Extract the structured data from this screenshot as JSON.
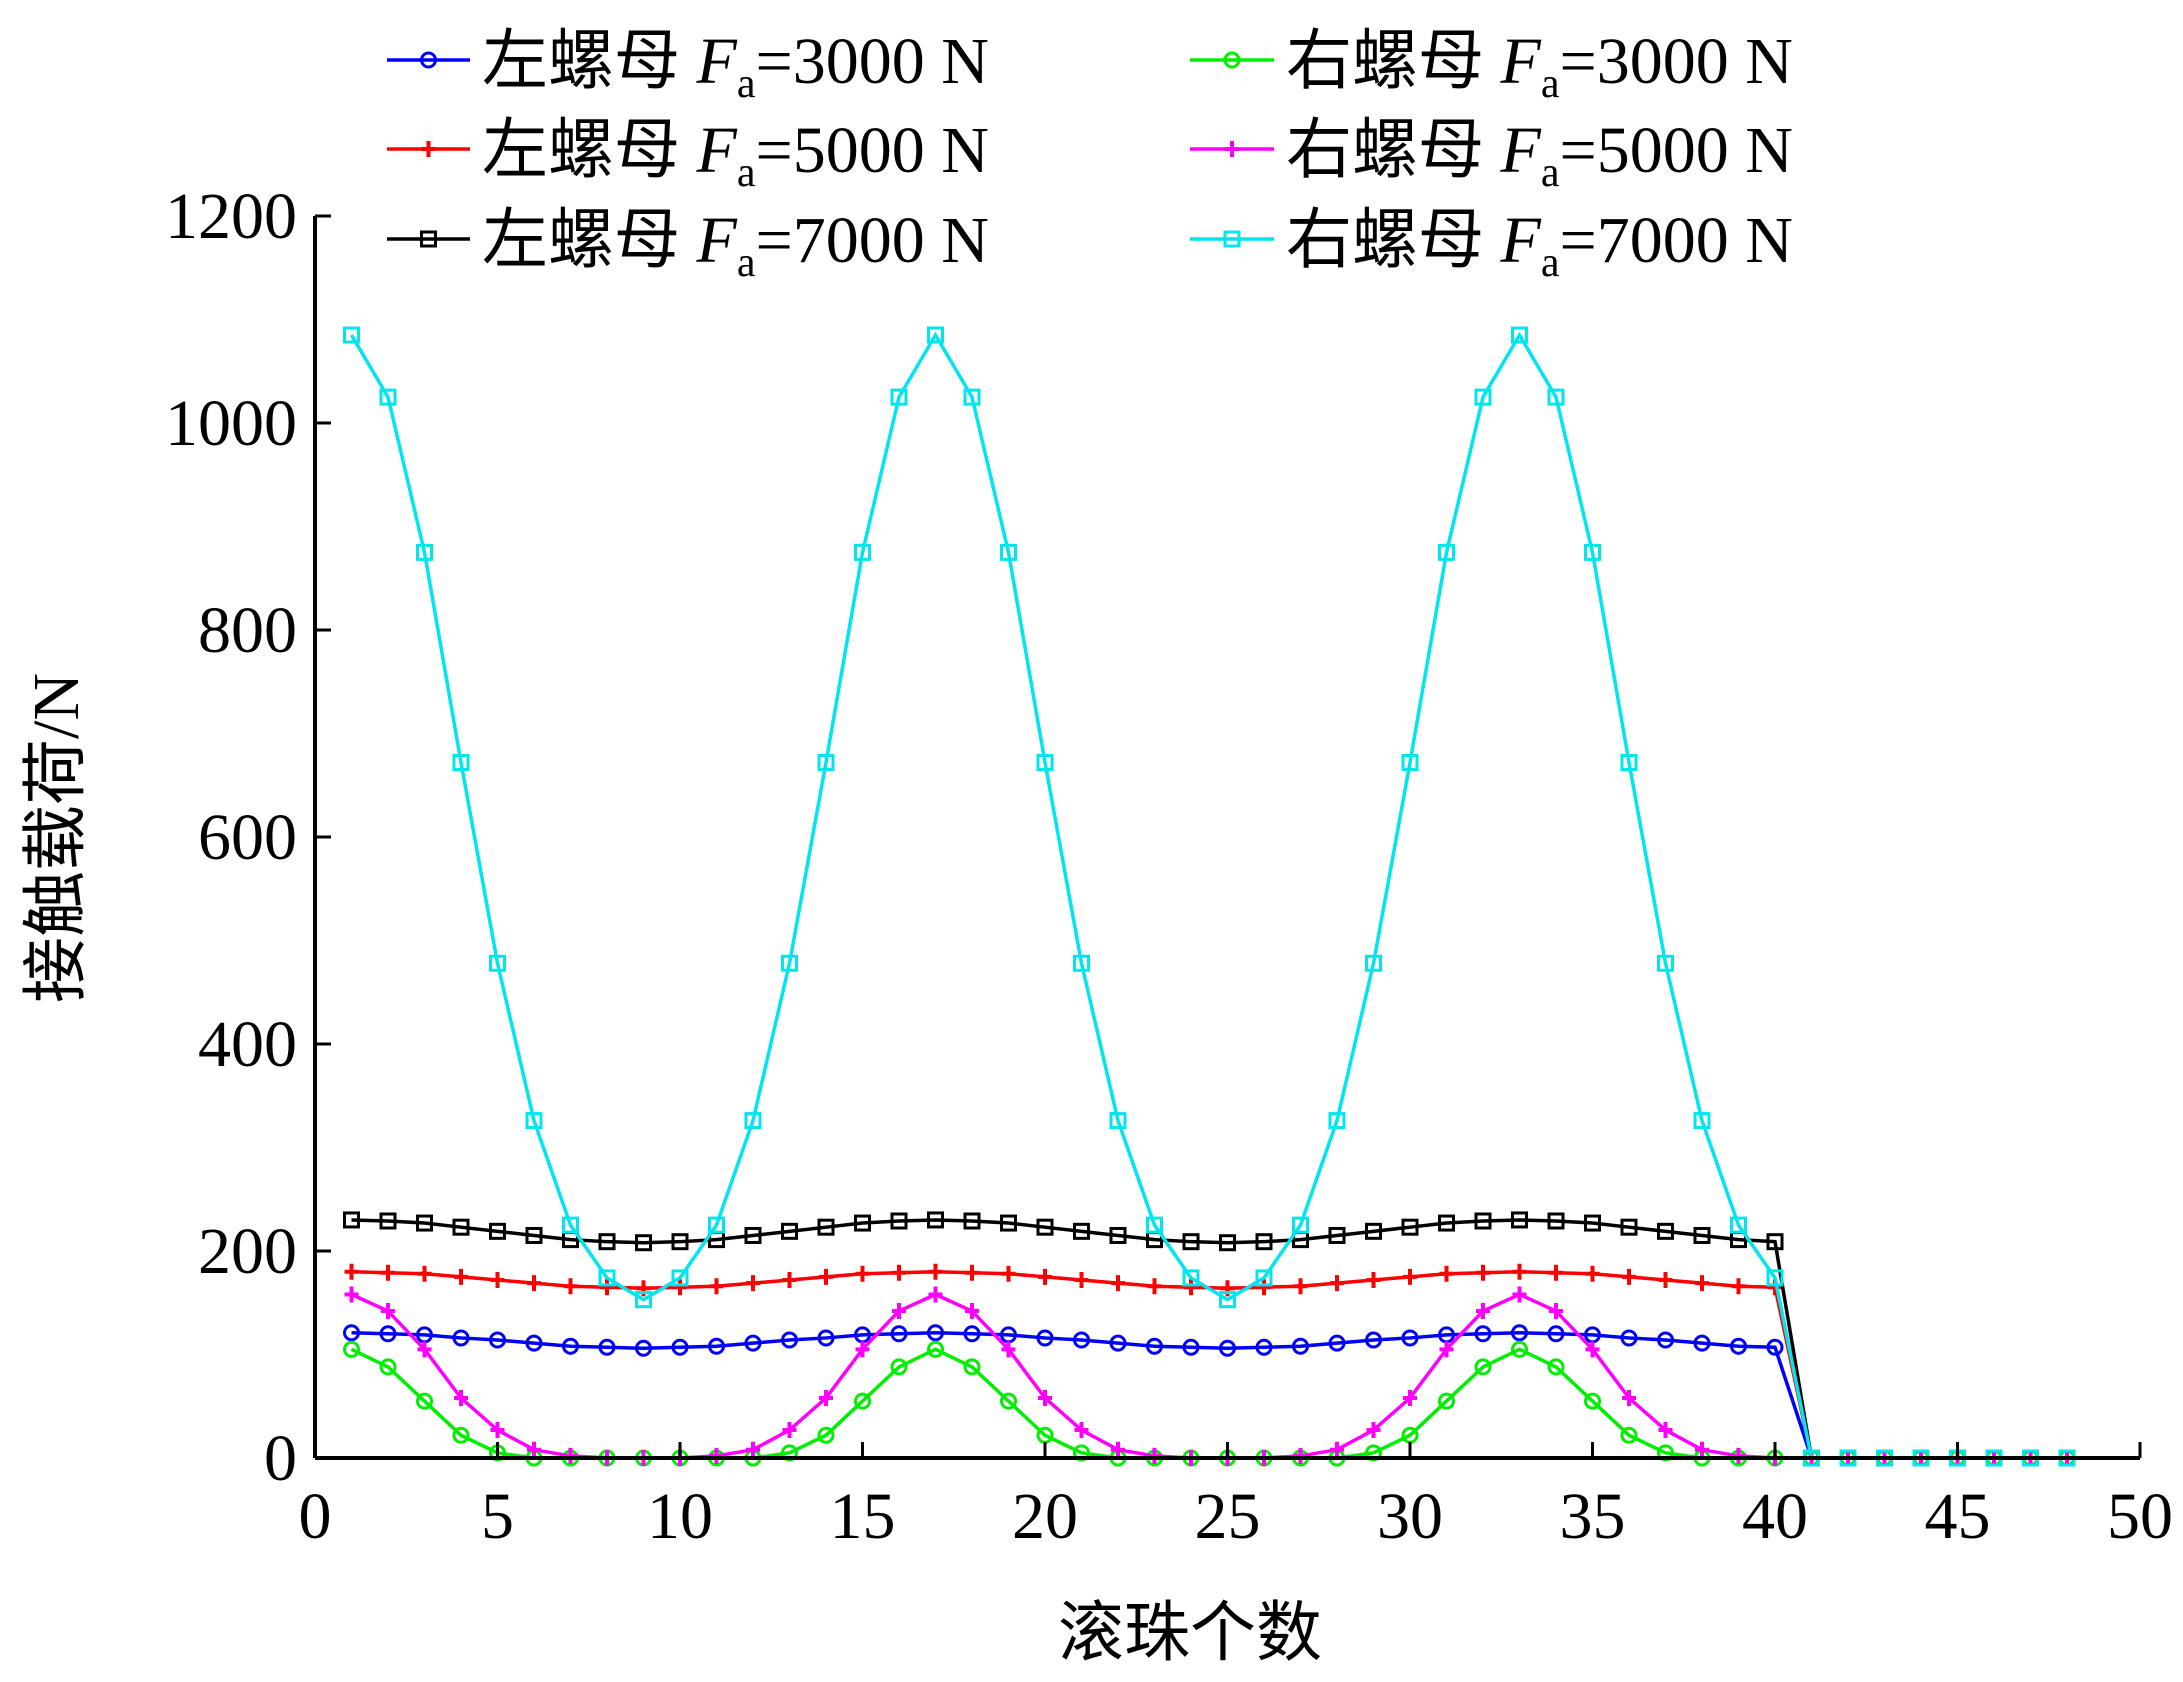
{
  "chart_data": {
    "type": "line",
    "title": "",
    "xlabel": "滚珠个数",
    "ylabel": "接触载荷/N",
    "xlim": [
      0,
      50
    ],
    "ylim": [
      0,
      1200
    ],
    "xticks": [
      0,
      5,
      10,
      15,
      20,
      25,
      30,
      35,
      40,
      45,
      50
    ],
    "yticks": [
      0,
      200,
      400,
      600,
      800,
      1000,
      1200
    ],
    "grid": false,
    "legend_placement": "top",
    "x": [
      1,
      2,
      3,
      4,
      5,
      6,
      7,
      8,
      9,
      10,
      11,
      12,
      13,
      14,
      15,
      16,
      17,
      18,
      19,
      20,
      21,
      22,
      23,
      24,
      25,
      26,
      27,
      28,
      29,
      30,
      31,
      32,
      33,
      34,
      35,
      36,
      37,
      38,
      39,
      40,
      41,
      42,
      43,
      44,
      45,
      46,
      47,
      48
    ],
    "series": [
      {
        "name": "左螺母 Fa=3000 N",
        "label_parts": {
          "prefix": "左螺母 ",
          "var": "F",
          "sub": "a",
          "suffix": "=3000 N"
        },
        "color": "#0000ff",
        "marker": "circle",
        "values": [
          121,
          120,
          119,
          116,
          114,
          111,
          108,
          107,
          106,
          107,
          108,
          111,
          114,
          116,
          119,
          120,
          121,
          120,
          119,
          116,
          114,
          111,
          108,
          107,
          106,
          107,
          108,
          111,
          114,
          116,
          119,
          120,
          121,
          120,
          119,
          116,
          114,
          111,
          108,
          107,
          0,
          0,
          0,
          0,
          0,
          0,
          0,
          0
        ]
      },
      {
        "name": "左螺母 Fa=5000 N",
        "label_parts": {
          "prefix": "左螺母 ",
          "var": "F",
          "sub": "a",
          "suffix": "=5000 N"
        },
        "color": "#ff0000",
        "marker": "plus",
        "values": [
          180,
          179,
          178,
          175,
          172,
          169,
          166,
          165,
          164,
          165,
          166,
          169,
          172,
          175,
          178,
          179,
          180,
          179,
          178,
          175,
          172,
          169,
          166,
          165,
          164,
          165,
          166,
          169,
          172,
          175,
          178,
          179,
          180,
          179,
          178,
          175,
          172,
          169,
          166,
          165,
          0,
          0,
          0,
          0,
          0,
          0,
          0,
          0
        ]
      },
      {
        "name": "左螺母 Fa=7000 N",
        "label_parts": {
          "prefix": "左螺母 ",
          "var": "F",
          "sub": "a",
          "suffix": "=7000 N"
        },
        "color": "#000000",
        "marker": "square",
        "values": [
          230,
          229,
          227,
          223,
          219,
          215,
          211,
          209,
          208,
          209,
          211,
          215,
          219,
          223,
          227,
          229,
          230,
          229,
          227,
          223,
          219,
          215,
          211,
          209,
          208,
          209,
          211,
          215,
          219,
          223,
          227,
          229,
          230,
          229,
          227,
          223,
          219,
          215,
          211,
          209,
          0,
          0,
          0,
          0,
          0,
          0,
          0,
          0
        ]
      },
      {
        "name": "右螺母 Fa=3000 N",
        "label_parts": {
          "prefix": "右螺母 ",
          "var": "F",
          "sub": "a",
          "suffix": "=3000 N"
        },
        "color": "#00ee00",
        "marker": "circle",
        "values": [
          105,
          88,
          55,
          22,
          5,
          0,
          0,
          0,
          0,
          0,
          0,
          0,
          5,
          22,
          55,
          88,
          105,
          88,
          55,
          22,
          5,
          0,
          0,
          0,
          0,
          0,
          0,
          0,
          5,
          22,
          55,
          88,
          105,
          88,
          55,
          22,
          5,
          0,
          0,
          0,
          0,
          0,
          0,
          0,
          0,
          0,
          0,
          0
        ]
      },
      {
        "name": "右螺母 Fa=5000 N",
        "label_parts": {
          "prefix": "右螺母 ",
          "var": "F",
          "sub": "a",
          "suffix": "=5000 N"
        },
        "color": "#ff00ff",
        "marker": "plus",
        "values": [
          158,
          142,
          105,
          58,
          27,
          8,
          2,
          0,
          0,
          0,
          2,
          8,
          27,
          58,
          105,
          142,
          158,
          142,
          105,
          58,
          27,
          8,
          2,
          0,
          0,
          0,
          2,
          8,
          27,
          58,
          105,
          142,
          158,
          142,
          105,
          58,
          27,
          8,
          2,
          0,
          0,
          0,
          0,
          0,
          0,
          0,
          0,
          0
        ]
      },
      {
        "name": "右螺母 Fa=7000 N",
        "label_parts": {
          "prefix": "右螺母 ",
          "var": "F",
          "sub": "a",
          "suffix": "=7000 N"
        },
        "color": "#00e5ee",
        "marker": "square",
        "values": [
          1085,
          1025,
          875,
          672,
          478,
          326,
          225,
          174,
          153,
          174,
          225,
          326,
          478,
          672,
          875,
          1025,
          1085,
          1025,
          875,
          672,
          478,
          326,
          225,
          174,
          153,
          174,
          225,
          326,
          478,
          672,
          875,
          1025,
          1085,
          1025,
          875,
          672,
          478,
          326,
          225,
          174,
          0,
          0,
          0,
          0,
          0,
          0,
          0,
          0
        ]
      }
    ]
  }
}
